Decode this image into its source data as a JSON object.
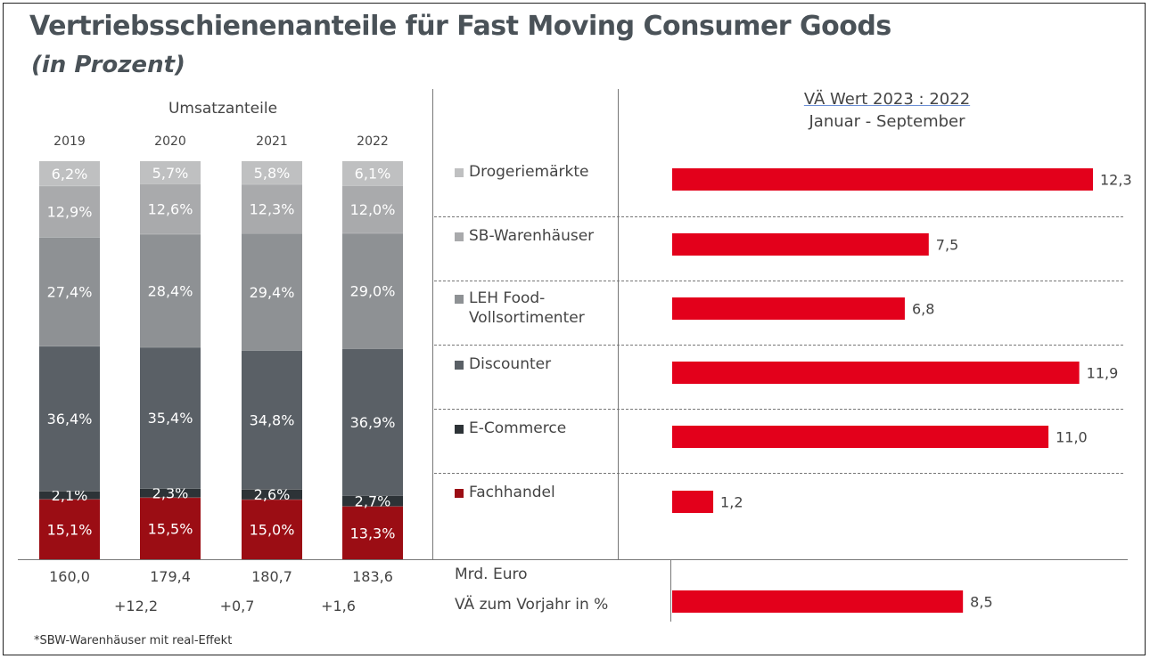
{
  "title": "Vertriebsschienenanteile für Fast Moving Consumer Goods",
  "subtitle": "(in Prozent)",
  "footnote": "*SBW-Warenhäuser mit real-Effekt",
  "colors": {
    "Drogeriemärkte": "#bfc0c1",
    "SB-Warenhäuser": "#a9aaac",
    "LEH Food-Vollsortimenter": "#8e9194",
    "Discounter": "#5a6066",
    "E-Commerce": "#2d3337",
    "Fachhandel": "#9b0d14",
    "accent_bar": "#e3001b"
  },
  "left_panel": {
    "heading": "Umsatzanteile",
    "row_label_total": "Mrd. Euro",
    "row_label_change": "VÄ zum Vorjahr in %"
  },
  "right_panel": {
    "heading_line1": "VÄ Wert 2023 : 2022",
    "heading_line2": "Januar - September"
  },
  "legend": [
    {
      "label": "Drogeriemärkte",
      "key": "Drogeriemärkte"
    },
    {
      "label": "SB-Warenhäuser",
      "key": "SB-Warenhäuser"
    },
    {
      "label": "LEH Food-\nVollsortimenter",
      "key": "LEH Food-Vollsortimenter"
    },
    {
      "label": "Discounter",
      "key": "Discounter"
    },
    {
      "label": "E-Commerce",
      "key": "E-Commerce"
    },
    {
      "label": "Fachhandel",
      "key": "Fachhandel"
    }
  ],
  "chart_data": [
    {
      "type": "bar",
      "stacked": true,
      "title": "Umsatzanteile",
      "categories": [
        "2019",
        "2020",
        "2021",
        "2022"
      ],
      "series": [
        {
          "name": "Fachhandel",
          "values": [
            15.1,
            15.5,
            15.0,
            13.3
          ],
          "labels": [
            "15,1%",
            "15,5%",
            "15,0%",
            "13,3%"
          ]
        },
        {
          "name": "E-Commerce",
          "values": [
            2.1,
            2.3,
            2.6,
            2.7
          ],
          "labels": [
            "2,1%",
            "2,3%",
            "2,6%",
            "2,7%"
          ]
        },
        {
          "name": "Discounter",
          "values": [
            36.4,
            35.4,
            34.8,
            36.9
          ],
          "labels": [
            "36,4%",
            "35,4%",
            "34,8%",
            "36,9%"
          ]
        },
        {
          "name": "LEH Food-Vollsortimenter",
          "values": [
            27.4,
            28.4,
            29.4,
            29.0
          ],
          "labels": [
            "27,4%",
            "28,4%",
            "29,4%",
            "29,0%"
          ]
        },
        {
          "name": "SB-Warenhäuser",
          "values": [
            12.9,
            12.6,
            12.3,
            12.0
          ],
          "labels": [
            "12,9%",
            "12,6%",
            "12,3%",
            "12,0%"
          ]
        },
        {
          "name": "Drogeriemärkte",
          "values": [
            6.2,
            5.7,
            5.8,
            6.1
          ],
          "labels": [
            "6,2%",
            "5,7%",
            "5,8%",
            "6,1%"
          ]
        }
      ],
      "totals": {
        "values": [
          160.0,
          179.4,
          180.7,
          183.6
        ],
        "labels": [
          "160,0",
          "179,4",
          "180,7",
          "183,6"
        ]
      },
      "changes": {
        "values": [
          12.2,
          0.7,
          1.6
        ],
        "labels": [
          "+12,2",
          "+0,7",
          "+1,6"
        ]
      },
      "ylim": [
        0,
        100
      ]
    },
    {
      "type": "bar",
      "orientation": "horizontal",
      "title": "VÄ Wert 2023 : 2022",
      "subtitle": "Januar - September",
      "categories": [
        "Drogeriemärkte",
        "SB-Warenhäuser",
        "LEH Food-Vollsortimenter",
        "Discounter",
        "E-Commerce",
        "Fachhandel"
      ],
      "values": [
        12.3,
        7.5,
        6.8,
        11.9,
        11.0,
        1.2
      ],
      "labels": [
        "12,3",
        "7,5",
        "6,8",
        "11,9",
        "11,0",
        "1,2"
      ],
      "total": {
        "label": "VÄ zum Vorjahr in %",
        "value": 8.5,
        "value_label": "8,5"
      },
      "xlim": [
        0,
        12.3
      ]
    }
  ]
}
